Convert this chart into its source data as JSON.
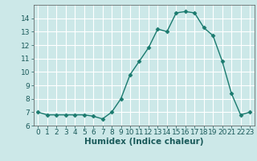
{
  "x": [
    0,
    1,
    2,
    3,
    4,
    5,
    6,
    7,
    8,
    9,
    10,
    11,
    12,
    13,
    14,
    15,
    16,
    17,
    18,
    19,
    20,
    21,
    22,
    23
  ],
  "y": [
    7.0,
    6.8,
    6.8,
    6.8,
    6.8,
    6.8,
    6.7,
    6.5,
    7.0,
    8.0,
    9.8,
    10.8,
    11.8,
    13.2,
    13.0,
    14.4,
    14.5,
    14.4,
    13.3,
    12.7,
    10.8,
    8.4,
    6.8,
    7.0
  ],
  "line_color": "#1a7a6e",
  "marker": "D",
  "marker_size": 2.5,
  "bg_color": "#cce8e8",
  "grid_color": "#ffffff",
  "xlabel": "Humidex (Indice chaleur)",
  "xlim": [
    -0.5,
    23.5
  ],
  "ylim": [
    6,
    15
  ],
  "yticks": [
    6,
    7,
    8,
    9,
    10,
    11,
    12,
    13,
    14
  ],
  "xticks": [
    0,
    1,
    2,
    3,
    4,
    5,
    6,
    7,
    8,
    9,
    10,
    11,
    12,
    13,
    14,
    15,
    16,
    17,
    18,
    19,
    20,
    21,
    22,
    23
  ],
  "tick_fontsize": 6.5,
  "label_fontsize": 7.5
}
